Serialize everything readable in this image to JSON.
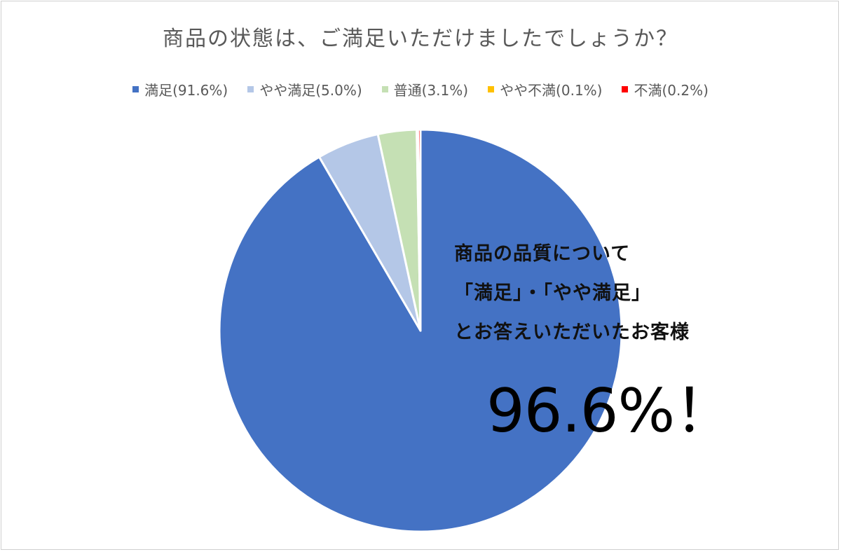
{
  "chart_data": {
    "type": "pie",
    "title": "商品の状態は、ご満足いただけましたでしょうか？",
    "legend_position": "top",
    "slices": [
      {
        "label": "満足(91.6%)",
        "value": 91.6,
        "color": "#4472C4"
      },
      {
        "label": "やや満足(5.0%)",
        "value": 5.0,
        "color": "#B4C7E7"
      },
      {
        "label": "普通(3.1%)",
        "value": 3.1,
        "color": "#C5E0B4"
      },
      {
        "label": "やや不満(0.1%)",
        "value": 0.1,
        "color": "#FFC000"
      },
      {
        "label": "不満(0.2%)",
        "value": 0.2,
        "color": "#FF0000"
      }
    ]
  },
  "annotation": {
    "line1": "商品の品質について",
    "line2": "「満足」・「やや満足」",
    "line3": "とお答えいただいたお客様",
    "highlight": "96.6%！"
  }
}
